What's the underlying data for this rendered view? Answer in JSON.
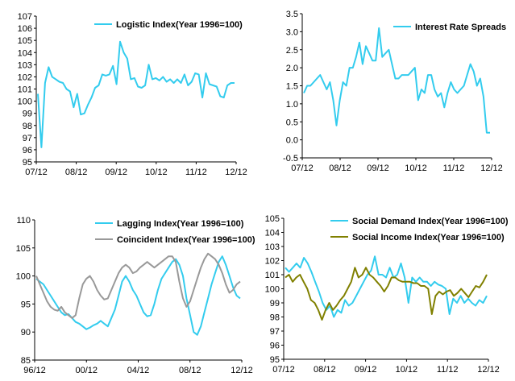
{
  "chart_data": [
    {
      "type": "line",
      "legend_position": "top",
      "xlabels": [
        "07/12",
        "08/12",
        "09/12",
        "10/12",
        "11/12",
        "12/12"
      ],
      "ylim": [
        95,
        107
      ],
      "yticks": [
        95,
        96,
        97,
        98,
        99,
        100,
        101,
        102,
        103,
        104,
        105,
        106,
        107
      ],
      "series": [
        {
          "name": "Logistic Index(Year 1996=100)",
          "color": "#33ccee",
          "values": [
            100.6,
            96.2,
            101.5,
            102.8,
            102.0,
            101.8,
            101.6,
            101.5,
            101.0,
            100.8,
            99.5,
            100.6,
            98.9,
            99.0,
            99.7,
            100.3,
            101.1,
            101.3,
            102.2,
            102.1,
            102.2,
            102.9,
            101.4,
            104.9,
            104.0,
            103.5,
            101.8,
            101.9,
            101.2,
            101.1,
            101.3,
            103.0,
            101.8,
            101.9,
            101.7,
            102.0,
            101.6,
            101.8,
            101.5,
            101.8,
            101.5,
            102.2,
            101.3,
            101.6,
            102.3,
            102.2,
            100.3,
            102.3,
            101.4,
            101.3,
            101.2,
            100.4,
            100.3,
            101.3,
            101.5,
            101.5
          ]
        }
      ]
    },
    {
      "type": "line",
      "legend_position": "top",
      "xlabels": [
        "07/12",
        "08/12",
        "09/12",
        "10/12",
        "11/12",
        "12/12"
      ],
      "ylim": [
        -0.5,
        3.5
      ],
      "yticks": [
        -0.5,
        0.0,
        0.5,
        1.0,
        1.5,
        2.0,
        2.5,
        3.0,
        3.5
      ],
      "series": [
        {
          "name": "Interest Rate Spreads",
          "color": "#33ccee",
          "values": [
            1.3,
            1.5,
            1.5,
            1.6,
            1.7,
            1.8,
            1.6,
            1.4,
            1.6,
            1.1,
            0.4,
            1.1,
            1.6,
            1.5,
            2.0,
            2.0,
            2.3,
            2.7,
            2.1,
            2.6,
            2.4,
            2.2,
            2.2,
            3.1,
            2.3,
            2.4,
            2.5,
            2.1,
            1.7,
            1.7,
            1.8,
            1.8,
            1.8,
            1.9,
            2.0,
            1.1,
            1.4,
            1.3,
            1.8,
            1.8,
            1.4,
            1.2,
            1.3,
            0.9,
            1.3,
            1.6,
            1.4,
            1.3,
            1.4,
            1.5,
            1.8,
            2.1,
            1.9,
            1.5,
            1.7,
            1.2,
            0.2,
            0.2
          ]
        }
      ]
    },
    {
      "type": "line",
      "legend_position": "top",
      "xlabels": [
        "96/12",
        "00/12",
        "04/12",
        "08/12",
        "12/12"
      ],
      "ylim": [
        85,
        110
      ],
      "yticks": [
        85,
        90,
        95,
        100,
        105,
        110
      ],
      "series": [
        {
          "name": "Lagging Index(Year 1996=100)",
          "color": "#33ccee",
          "values": [
            99.5,
            99.0,
            98.5,
            97.5,
            96.5,
            95.5,
            94.5,
            93.5,
            93.0,
            93.2,
            92.5,
            91.8,
            91.5,
            91.0,
            90.5,
            90.8,
            91.2,
            91.5,
            92.0,
            91.5,
            91.0,
            92.5,
            94.0,
            96.5,
            99.0,
            100.0,
            99.0,
            97.5,
            96.5,
            95.0,
            93.5,
            92.8,
            93.0,
            95.0,
            97.5,
            99.5,
            100.5,
            101.5,
            102.5,
            103.0,
            102.0,
            100.0,
            96.0,
            93.0,
            90.0,
            89.5,
            91.0,
            93.5,
            96.0,
            98.5,
            100.5,
            102.5,
            103.5,
            102.0,
            100.0,
            98.0,
            96.5,
            96.0
          ]
        },
        {
          "name": "Coincident Index(Year 1996=100)",
          "color": "#999999",
          "values": [
            100.0,
            98.5,
            97.0,
            95.5,
            94.5,
            94.0,
            93.8,
            94.5,
            93.5,
            93.0,
            92.5,
            93.0,
            96.0,
            98.5,
            99.5,
            100.0,
            99.0,
            97.5,
            96.5,
            95.8,
            96.0,
            97.5,
            99.0,
            100.5,
            101.5,
            102.0,
            101.5,
            100.5,
            100.8,
            101.5,
            102.0,
            102.5,
            102.0,
            101.5,
            102.0,
            102.5,
            103.0,
            103.5,
            103.5,
            102.5,
            99.0,
            96.0,
            94.5,
            95.5,
            97.5,
            99.5,
            101.5,
            103.0,
            104.0,
            103.5,
            103.0,
            102.0,
            100.5,
            98.5,
            97.0,
            97.5,
            98.5,
            99.0
          ]
        }
      ]
    },
    {
      "type": "line",
      "legend_position": "top",
      "xlabels": [
        "07/12",
        "08/12",
        "09/12",
        "10/12",
        "11/12",
        "12/12"
      ],
      "ylim": [
        95,
        105
      ],
      "yticks": [
        95,
        96,
        97,
        98,
        99,
        100,
        101,
        102,
        103,
        104,
        105
      ],
      "series": [
        {
          "name": "Social Demand Index(Year 1996=100)",
          "color": "#33ccee",
          "values": [
            101.5,
            101.2,
            101.5,
            101.8,
            101.5,
            102.2,
            101.8,
            101.2,
            100.5,
            99.8,
            99.0,
            98.5,
            98.8,
            98.0,
            98.5,
            98.3,
            99.2,
            98.8,
            99.0,
            99.5,
            100.0,
            100.5,
            101.0,
            101.3,
            102.3,
            101.0,
            101.0,
            100.8,
            101.5,
            100.8,
            101.0,
            101.8,
            100.8,
            99.0,
            100.8,
            100.5,
            100.8,
            100.5,
            100.5,
            100.2,
            100.5,
            100.3,
            100.2,
            100.0,
            98.2,
            99.3,
            99.0,
            99.5,
            99.0,
            99.3,
            99.0,
            98.8,
            99.2,
            99.0,
            99.5
          ]
        },
        {
          "name": "Social Income Index(Year 1996=100)",
          "color": "#808000",
          "values": [
            100.8,
            101.0,
            100.5,
            100.8,
            101.0,
            100.5,
            100.0,
            99.2,
            99.0,
            98.5,
            97.8,
            98.5,
            99.0,
            98.5,
            98.8,
            99.2,
            99.5,
            100.0,
            100.5,
            101.5,
            100.8,
            101.0,
            101.5,
            101.0,
            100.8,
            100.5,
            100.2,
            99.8,
            100.2,
            100.8,
            100.8,
            100.6,
            100.5,
            100.5,
            100.5,
            100.4,
            100.4,
            100.2,
            100.2,
            100.0,
            98.2,
            99.5,
            99.8,
            99.6,
            99.8,
            99.9,
            99.5,
            99.7,
            100.0,
            99.7,
            99.4,
            99.8,
            100.2,
            100.1,
            100.5,
            101.0
          ]
        }
      ]
    }
  ]
}
